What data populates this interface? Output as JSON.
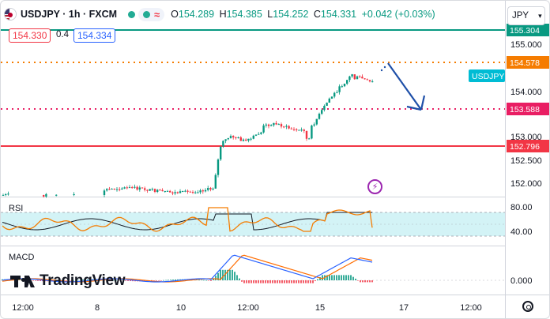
{
  "header": {
    "symbol": "USDJPY",
    "interval": "1h",
    "exchange": "FXCM",
    "symbol_line": "USDJPY · 1h · FXCM",
    "indicator_glyph": "≈",
    "open_label": "O",
    "open": "154.289",
    "high_label": "H",
    "high": "154.385",
    "low_label": "L",
    "low": "154.252",
    "close_label": "C",
    "close": "154.331",
    "change": "+0.042 (+0.03%)"
  },
  "quote": {
    "bid": "154.330",
    "spread": "0.4",
    "ask": "154.334"
  },
  "currency_button": {
    "label": "JPY"
  },
  "price_axis": {
    "ticks": [
      "155.000",
      "154.000",
      "153.000",
      "152.500",
      "152.000"
    ],
    "labels": [
      {
        "text": "155.304",
        "color": "#089981"
      },
      {
        "text": "154.578",
        "color": "#f57c00"
      },
      {
        "text": "USDJPY",
        "color": "#00bcd4"
      },
      {
        "text": "153.588",
        "color": "#e91e63"
      },
      {
        "text": "152.796",
        "color": "#f23645"
      }
    ]
  },
  "rsi": {
    "name": "RSI",
    "ticks": [
      "80.00",
      "40.00"
    ]
  },
  "macd": {
    "name": "MACD",
    "ticks": [
      "0.000"
    ]
  },
  "time_axis": {
    "labels": [
      "12:00",
      "8",
      "10",
      "12:00",
      "15",
      "17",
      "12:00"
    ]
  },
  "brand": {
    "name": "TradingView"
  },
  "colors": {
    "up": "#089981",
    "down": "#f23645",
    "accent_blue": "#1e4fa8",
    "rsi_line": "#f57c00",
    "rsi_ma": "#131722",
    "rsi_band": "#d3f3f6",
    "macd_line": "#2962ff",
    "signal_line": "#ff6d00"
  },
  "chart_data": {
    "type": "candlestick",
    "levels": [
      155.304,
      154.578,
      153.588,
      152.796
    ],
    "price_range": [
      151.7,
      155.5
    ],
    "rsi_levels": [
      80,
      40
    ],
    "projection_arrow": {
      "from": 154.6,
      "to": 153.6
    }
  }
}
